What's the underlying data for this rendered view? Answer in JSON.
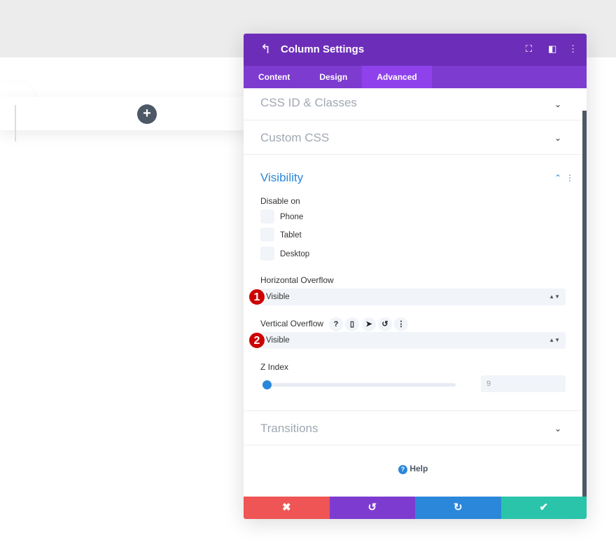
{
  "canvas": {
    "add_label": "+"
  },
  "panel": {
    "title": "Column Settings",
    "tabs": [
      {
        "label": "Content"
      },
      {
        "label": "Design"
      },
      {
        "label": "Advanced"
      }
    ],
    "active_tab": "Advanced",
    "sections": {
      "css_id": "CSS ID & Classes",
      "custom_css": "Custom CSS",
      "visibility": "Visibility",
      "transitions": "Transitions"
    },
    "visibility": {
      "disable_on_label": "Disable on",
      "devices": [
        {
          "label": "Phone",
          "checked": false
        },
        {
          "label": "Tablet",
          "checked": false
        },
        {
          "label": "Desktop",
          "checked": false
        }
      ],
      "horizontal_overflow": {
        "label": "Horizontal Overflow",
        "value": "Visible",
        "badge": "1"
      },
      "vertical_overflow": {
        "label": "Vertical Overflow",
        "value": "Visible",
        "badge": "2"
      },
      "z_index": {
        "label": "Z Index",
        "value": "9"
      }
    },
    "help": "Help",
    "colors": {
      "header": "#6c2eb9",
      "tabs": "#7e3bd0",
      "cancel": "#ef5555",
      "undo": "#7e3bd0",
      "redo": "#2b87da",
      "save": "#29c4a9"
    }
  }
}
